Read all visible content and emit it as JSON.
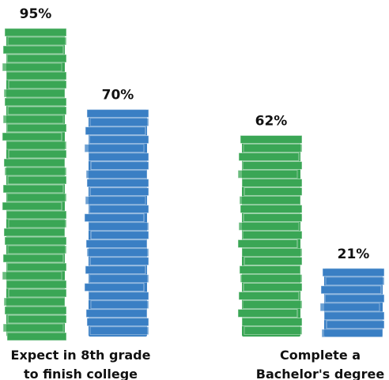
{
  "chart_data": {
    "type": "bar",
    "categories": [
      "Expect in 8th grade to finish college",
      "Complete a Bachelor's degree"
    ],
    "series": [
      {
        "color": "#3aa655",
        "values": [
          95,
          62
        ],
        "value_labels": [
          "95%",
          "62%"
        ]
      },
      {
        "color": "#3a7fc4",
        "values": [
          70,
          21
        ],
        "value_labels": [
          "70%",
          "21%"
        ]
      }
    ]
  }
}
